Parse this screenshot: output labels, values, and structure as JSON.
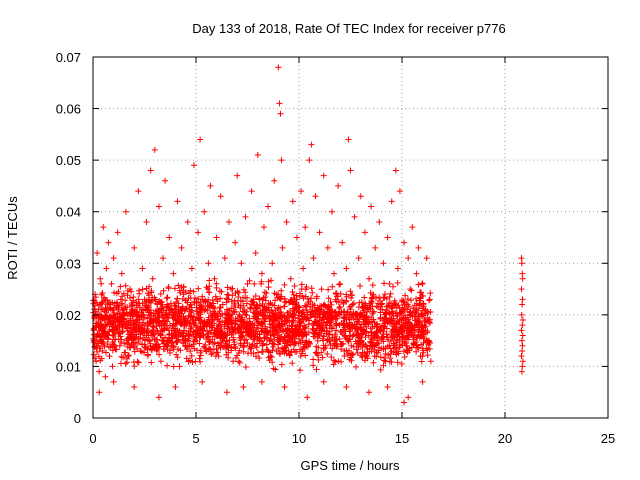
{
  "chart_data": {
    "type": "scatter",
    "title": "Day 133 of 2018, Rate Of TEC Index for receiver p776",
    "xlabel": "GPS time / hours",
    "ylabel": "ROTI / TECUs",
    "xlim": [
      0,
      25
    ],
    "ylim": [
      0,
      0.07
    ],
    "x_ticks": [
      0,
      5,
      10,
      15,
      20,
      25
    ],
    "x_tick_labels": [
      "0",
      "5",
      "10",
      "15",
      "20",
      "25"
    ],
    "y_ticks": [
      0,
      0.01,
      0.02,
      0.03,
      0.04,
      0.05,
      0.06,
      0.07
    ],
    "y_tick_labels": [
      "0",
      "0.01",
      "0.02",
      "0.03",
      "0.04",
      "0.05",
      "0.06",
      "0.07"
    ],
    "grid": true,
    "marker": "+",
    "color": "#ff0000",
    "series": [
      {
        "name": "ROTI",
        "points": [
          [
            0.05,
            0.015
          ],
          [
            0.1,
            0.024
          ],
          [
            0.15,
            0.011
          ],
          [
            0.2,
            0.032
          ],
          [
            0.25,
            0.018
          ],
          [
            0.3,
            0.009
          ],
          [
            0.35,
            0.027
          ],
          [
            0.4,
            0.021
          ],
          [
            0.45,
            0.013
          ],
          [
            0.5,
            0.037
          ],
          [
            0.55,
            0.019
          ],
          [
            0.6,
            0.008
          ],
          [
            0.65,
            0.029
          ],
          [
            0.7,
            0.016
          ],
          [
            0.75,
            0.034
          ],
          [
            0.8,
            0.012
          ],
          [
            0.85,
            0.022
          ],
          [
            0.9,
            0.026
          ],
          [
            0.95,
            0.01
          ],
          [
            1.0,
            0.031
          ],
          [
            1.1,
            0.018
          ],
          [
            1.2,
            0.036
          ],
          [
            1.3,
            0.014
          ],
          [
            1.4,
            0.028
          ],
          [
            1.5,
            0.021
          ],
          [
            1.6,
            0.04
          ],
          [
            1.7,
            0.012
          ],
          [
            1.8,
            0.025
          ],
          [
            1.9,
            0.017
          ],
          [
            2.0,
            0.033
          ],
          [
            2.1,
            0.02
          ],
          [
            2.2,
            0.044
          ],
          [
            2.3,
            0.013
          ],
          [
            2.4,
            0.029
          ],
          [
            2.5,
            0.023
          ],
          [
            2.6,
            0.038
          ],
          [
            2.7,
            0.016
          ],
          [
            2.8,
            0.048
          ],
          [
            2.9,
            0.027
          ],
          [
            3.0,
            0.052
          ],
          [
            3.1,
            0.019
          ],
          [
            3.2,
            0.041
          ],
          [
            3.3,
            0.011
          ],
          [
            3.4,
            0.031
          ],
          [
            3.5,
            0.046
          ],
          [
            3.6,
            0.022
          ],
          [
            3.7,
            0.035
          ],
          [
            3.8,
            0.014
          ],
          [
            3.9,
            0.028
          ],
          [
            4.0,
            0.019
          ],
          [
            4.1,
            0.042
          ],
          [
            4.2,
            0.01
          ],
          [
            4.3,
            0.033
          ],
          [
            4.4,
            0.024
          ],
          [
            4.5,
            0.016
          ],
          [
            4.6,
            0.038
          ],
          [
            4.7,
            0.021
          ],
          [
            4.8,
            0.029
          ],
          [
            4.9,
            0.049
          ],
          [
            5.0,
            0.017
          ],
          [
            5.1,
            0.036
          ],
          [
            5.2,
            0.054
          ],
          [
            5.3,
            0.023
          ],
          [
            5.4,
            0.04
          ],
          [
            5.5,
            0.013
          ],
          [
            5.6,
            0.03
          ],
          [
            5.7,
            0.045
          ],
          [
            5.8,
            0.019
          ],
          [
            5.9,
            0.027
          ],
          [
            6.0,
            0.035
          ],
          [
            6.1,
            0.012
          ],
          [
            6.2,
            0.043
          ],
          [
            6.3,
            0.022
          ],
          [
            6.4,
            0.031
          ],
          [
            6.5,
            0.016
          ],
          [
            6.6,
            0.038
          ],
          [
            6.7,
            0.025
          ],
          [
            6.8,
            0.011
          ],
          [
            6.9,
            0.034
          ],
          [
            7.0,
            0.047
          ],
          [
            7.1,
            0.02
          ],
          [
            7.2,
            0.03
          ],
          [
            7.3,
            0.014
          ],
          [
            7.4,
            0.039
          ],
          [
            7.5,
            0.026
          ],
          [
            7.6,
            0.018
          ],
          [
            7.7,
            0.044
          ],
          [
            7.8,
            0.023
          ],
          [
            7.9,
            0.032
          ],
          [
            8.0,
            0.051
          ],
          [
            8.1,
            0.015
          ],
          [
            8.2,
            0.028
          ],
          [
            8.3,
            0.037
          ],
          [
            8.4,
            0.021
          ],
          [
            8.5,
            0.041
          ],
          [
            8.6,
            0.012
          ],
          [
            8.7,
            0.03
          ],
          [
            8.8,
            0.046
          ],
          [
            8.9,
            0.024
          ],
          [
            9.0,
            0.068
          ],
          [
            9.05,
            0.061
          ],
          [
            9.1,
            0.059
          ],
          [
            9.15,
            0.05
          ],
          [
            9.2,
            0.033
          ],
          [
            9.3,
            0.019
          ],
          [
            9.4,
            0.038
          ],
          [
            9.5,
            0.013
          ],
          [
            9.6,
            0.027
          ],
          [
            9.7,
            0.042
          ],
          [
            9.8,
            0.022
          ],
          [
            9.9,
            0.035
          ],
          [
            10.0,
            0.016
          ],
          [
            10.1,
            0.044
          ],
          [
            10.2,
            0.029
          ],
          [
            10.3,
            0.037
          ],
          [
            10.4,
            0.02
          ],
          [
            10.5,
            0.05
          ],
          [
            10.6,
            0.053
          ],
          [
            10.7,
            0.031
          ],
          [
            10.8,
            0.043
          ],
          [
            10.9,
            0.018
          ],
          [
            11.0,
            0.036
          ],
          [
            11.1,
            0.025
          ],
          [
            11.2,
            0.047
          ],
          [
            11.3,
            0.014
          ],
          [
            11.4,
            0.033
          ],
          [
            11.5,
            0.021
          ],
          [
            11.6,
            0.04
          ],
          [
            11.7,
            0.028
          ],
          [
            11.8,
            0.017
          ],
          [
            11.9,
            0.045
          ],
          [
            12.0,
            0.026
          ],
          [
            12.1,
            0.034
          ],
          [
            12.2,
            0.013
          ],
          [
            12.3,
            0.029
          ],
          [
            12.4,
            0.054
          ],
          [
            12.5,
            0.048
          ],
          [
            12.6,
            0.022
          ],
          [
            12.7,
            0.039
          ],
          [
            12.8,
            0.016
          ],
          [
            12.9,
            0.031
          ],
          [
            13.0,
            0.043
          ],
          [
            13.1,
            0.02
          ],
          [
            13.2,
            0.036
          ],
          [
            13.3,
            0.012
          ],
          [
            13.4,
            0.027
          ],
          [
            13.5,
            0.041
          ],
          [
            13.6,
            0.024
          ],
          [
            13.7,
            0.033
          ],
          [
            13.8,
            0.015
          ],
          [
            13.9,
            0.038
          ],
          [
            14.0,
            0.022
          ],
          [
            14.1,
            0.03
          ],
          [
            14.2,
            0.011
          ],
          [
            14.3,
            0.035
          ],
          [
            14.4,
            0.026
          ],
          [
            14.5,
            0.042
          ],
          [
            14.6,
            0.018
          ],
          [
            14.7,
            0.048
          ],
          [
            14.8,
            0.029
          ],
          [
            14.9,
            0.044
          ],
          [
            15.0,
            0.021
          ],
          [
            15.1,
            0.034
          ],
          [
            15.2,
            0.014
          ],
          [
            15.3,
            0.031
          ],
          [
            15.4,
            0.025
          ],
          [
            15.5,
            0.037
          ],
          [
            15.6,
            0.017
          ],
          [
            15.7,
            0.028
          ],
          [
            15.8,
            0.033
          ],
          [
            15.9,
            0.012
          ],
          [
            16.0,
            0.026
          ],
          [
            16.1,
            0.019
          ],
          [
            16.2,
            0.031
          ],
          [
            16.3,
            0.015
          ],
          [
            16.35,
            0.023
          ],
          [
            16.4,
            0.011
          ],
          [
            0.3,
            0.005
          ],
          [
            1.0,
            0.007
          ],
          [
            2.0,
            0.006
          ],
          [
            3.2,
            0.004
          ],
          [
            4.0,
            0.006
          ],
          [
            5.3,
            0.007
          ],
          [
            6.5,
            0.005
          ],
          [
            7.3,
            0.006
          ],
          [
            8.2,
            0.007
          ],
          [
            9.3,
            0.006
          ],
          [
            10.4,
            0.004
          ],
          [
            11.2,
            0.007
          ],
          [
            12.3,
            0.006
          ],
          [
            13.4,
            0.005
          ],
          [
            14.3,
            0.006
          ],
          [
            15.1,
            0.003
          ],
          [
            15.3,
            0.004
          ],
          [
            16.0,
            0.007
          ],
          [
            20.8,
            0.031
          ],
          [
            20.82,
            0.03
          ],
          [
            20.84,
            0.028
          ],
          [
            20.86,
            0.027
          ],
          [
            20.8,
            0.025
          ],
          [
            20.85,
            0.023
          ],
          [
            20.83,
            0.022
          ],
          [
            20.81,
            0.02
          ],
          [
            20.87,
            0.019
          ],
          [
            20.84,
            0.018
          ],
          [
            20.8,
            0.017
          ],
          [
            20.86,
            0.016
          ],
          [
            20.82,
            0.015
          ],
          [
            20.85,
            0.014
          ],
          [
            20.83,
            0.013
          ],
          [
            20.8,
            0.012
          ],
          [
            20.87,
            0.011
          ],
          [
            20.84,
            0.01
          ],
          [
            20.82,
            0.009
          ]
        ],
        "band": {
          "x_range": [
            0,
            16.4
          ],
          "y_min": 0.008,
          "y_max": 0.028,
          "count": 2600
        }
      }
    ]
  }
}
